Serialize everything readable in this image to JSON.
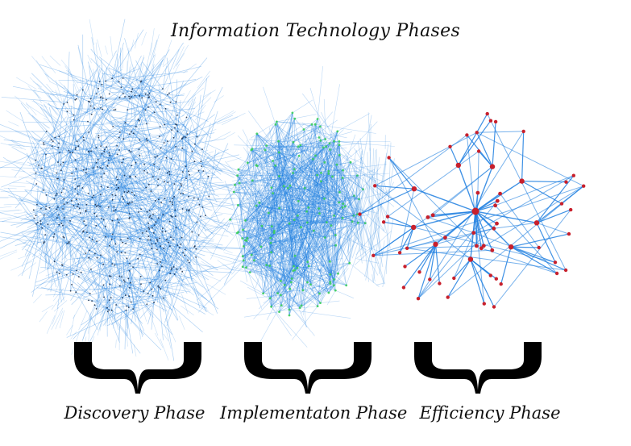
{
  "title": "Information Technology Phases",
  "phases": [
    {
      "label": "Discovery Phase",
      "node_color": "#1a2a44"
    },
    {
      "label": "Implementaton Phase",
      "node_color": "#3ccf5c"
    },
    {
      "label": "Efficiency Phase",
      "node_color": "#c8202c"
    }
  ],
  "colors": {
    "edge": "#1e7fe0",
    "brace": "#000000",
    "text": "#111111"
  }
}
